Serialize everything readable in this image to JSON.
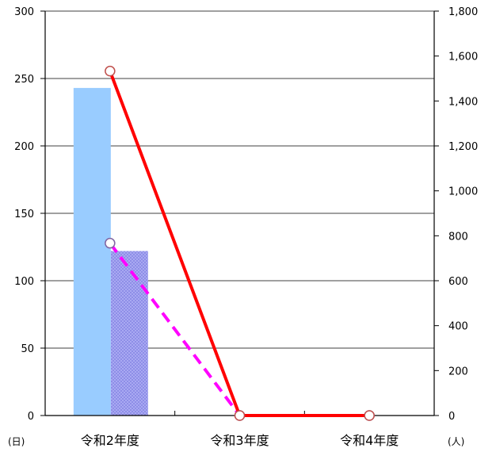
{
  "chart_data": {
    "type": "bar+line",
    "categories": [
      "令和2年度",
      "令和3年度",
      "令和4年度"
    ],
    "y_left": {
      "unit": "(日)",
      "min": 0,
      "max": 300,
      "step": 50,
      "ticks": [
        "0",
        "50",
        "100",
        "150",
        "200",
        "250",
        "300"
      ]
    },
    "y_right": {
      "unit": "(人)",
      "min": 0,
      "max": 1800,
      "step": 200,
      "ticks": [
        "0",
        "200",
        "400",
        "600",
        "800",
        "1,000",
        "1,200",
        "1,400",
        "1,600",
        "1,800"
      ]
    },
    "bars": [
      {
        "axis": "left",
        "color": "#99ccff",
        "pattern": "solid",
        "values": [
          243,
          0,
          0
        ]
      },
      {
        "axis": "left",
        "color": "#9999ee",
        "pattern": "dotted",
        "values": [
          122,
          0,
          0
        ]
      }
    ],
    "lines": [
      {
        "axis": "right",
        "color": "#ff0000",
        "style": "solid",
        "marker_color": "#c0504d",
        "values": [
          1533,
          0,
          0
        ]
      },
      {
        "axis": "right",
        "color": "#ff00ff",
        "style": "dashed",
        "marker_color": "#8064a2",
        "values": [
          767,
          0,
          0
        ]
      }
    ],
    "grid": true,
    "legend": "none"
  }
}
